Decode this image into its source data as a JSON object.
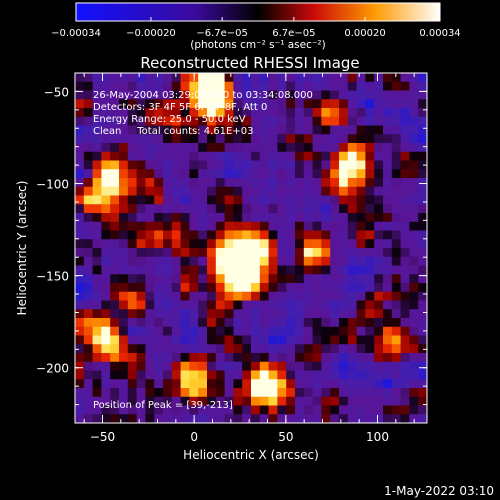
{
  "chart_data": {
    "type": "heatmap",
    "title": "Reconstructed RHESSI Image",
    "xlabel": "Heliocentric X (arcsec)",
    "ylabel": "Heliocentric Y (arcsec)",
    "xlim": [
      -65,
      127
    ],
    "ylim": [
      -230,
      -40
    ],
    "xticks": [
      -50,
      0,
      50,
      100
    ],
    "xtick_labels": [
      "−50",
      "0",
      "50",
      "100"
    ],
    "yticks": [
      -200,
      -150,
      -100,
      -50
    ],
    "ytick_labels": [
      "−200",
      "−150",
      "−100",
      "−50"
    ],
    "colorbar": {
      "range": [
        -0.00034,
        0.00034
      ],
      "ticks": [
        -0.00034,
        -0.0002,
        -6.7e-05,
        6.7e-05,
        0.0002,
        0.00034
      ],
      "tick_labels": [
        "−0.00034",
        "−0.00020",
        "−6.7e−05",
        "6.7e−05",
        "0.00020",
        "0.00034"
      ],
      "units": "(photons cm⁻² s⁻¹ asec⁻²)",
      "colors": [
        "#1010ff",
        "#000000",
        "#ff1010",
        "#ffaa00",
        "#ffffff"
      ]
    },
    "annotations": [
      "26-May-2004 03:29:00.000 to 03:34:08.000",
      "Detectors: 3F 4F 5F 6F 7F 8F, Att 0",
      "Energy Range: 25.0 - 50.0 keV",
      "Clean     Total counts: 4.61E+03"
    ],
    "peak_label": "Position of Peak = [39,-213]",
    "bright_regions": [
      {
        "x": 8,
        "y": -57,
        "strength": 1.0
      },
      {
        "x": 10,
        "y": -48,
        "strength": 0.8
      },
      {
        "x": -45,
        "y": -98,
        "strength": 0.75
      },
      {
        "x": -52,
        "y": -108,
        "strength": 0.6
      },
      {
        "x": 18,
        "y": -140,
        "strength": 1.0
      },
      {
        "x": 35,
        "y": -135,
        "strength": 0.75
      },
      {
        "x": 28,
        "y": -152,
        "strength": 0.9
      },
      {
        "x": 82,
        "y": -98,
        "strength": 0.7
      },
      {
        "x": 90,
        "y": -88,
        "strength": 0.6
      },
      {
        "x": 65,
        "y": -140,
        "strength": 0.55
      },
      {
        "x": -35,
        "y": -165,
        "strength": 0.6
      },
      {
        "x": -50,
        "y": -185,
        "strength": 0.65
      },
      {
        "x": 40,
        "y": -210,
        "strength": 0.95
      },
      {
        "x": 0,
        "y": -210,
        "strength": 0.55
      },
      {
        "x": 100,
        "y": -165,
        "strength": 0.5
      },
      {
        "x": 110,
        "y": -188,
        "strength": 0.6
      },
      {
        "x": 75,
        "y": -65,
        "strength": 0.5
      },
      {
        "x": -15,
        "y": -130,
        "strength": 0.55
      }
    ]
  },
  "footer": {
    "date": "1-May-2022 03:10"
  }
}
